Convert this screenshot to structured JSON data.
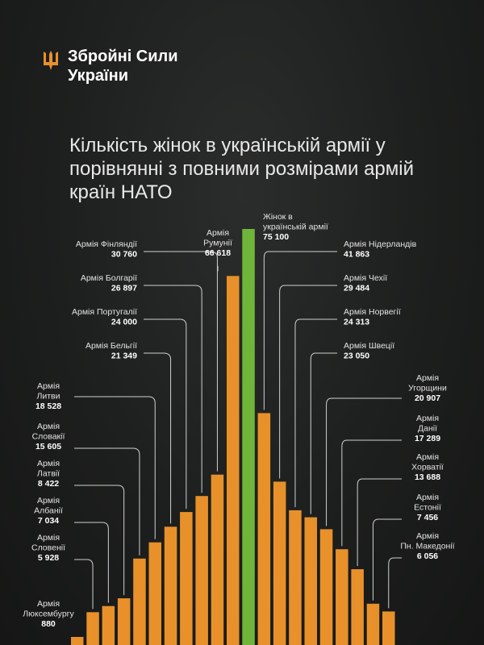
{
  "brand": {
    "name": "Збройні Сили\nУкраїни",
    "icon": "trident-icon",
    "accent": "#e8912a"
  },
  "colors": {
    "bar": "#e8912a",
    "highlight": "#6fb53a",
    "leader": "#cfcfcf",
    "background": "#1d1f1e"
  },
  "chart_data": {
    "type": "bar",
    "title": "Кількість жінок в українській армії у порівнянні з повними розмірами армій країн НАТО",
    "xlabel": "",
    "ylabel": "",
    "ylim": [
      0,
      80000
    ],
    "grid": false,
    "bars": [
      {
        "label": "Армія Люксембургу",
        "value": 880,
        "value_text": "880"
      },
      {
        "label": "Армія Словенії",
        "value": 5928,
        "value_text": "5 928"
      },
      {
        "label": "Армія Албанії",
        "value": 7034,
        "value_text": "7 034"
      },
      {
        "label": "Армія Латвії",
        "value": 8422,
        "value_text": "8 422"
      },
      {
        "label": "Армія Словакії",
        "value": 15605,
        "value_text": "15 605"
      },
      {
        "label": "Армія Литви",
        "value": 18528,
        "value_text": "18 528"
      },
      {
        "label": "Армія Бельгії",
        "value": 21349,
        "value_text": "21 349"
      },
      {
        "label": "Армія Португалії",
        "value": 24000,
        "value_text": "24 000"
      },
      {
        "label": "Армія Болгарії",
        "value": 26897,
        "value_text": "26 897"
      },
      {
        "label": "Армія Фінляндії",
        "value": 30760,
        "value_text": "30 760"
      },
      {
        "label": "Армія Румунії",
        "value": 66618,
        "value_text": "66 618"
      },
      {
        "label": "Жінок в українській армії",
        "value": 75100,
        "value_text": "75 100",
        "highlight": true
      },
      {
        "label": "Армія Нідерландів",
        "value": 41863,
        "value_text": "41 863"
      },
      {
        "label": "Армія Чехії",
        "value": 29484,
        "value_text": "29 484"
      },
      {
        "label": "Армія Норвегії",
        "value": 24313,
        "value_text": "24 313"
      },
      {
        "label": "Армія Швеції",
        "value": 23050,
        "value_text": "23 050"
      },
      {
        "label": "Армія Угорщини",
        "value": 20907,
        "value_text": "20 907"
      },
      {
        "label": "Армія Данії",
        "value": 17289,
        "value_text": "17 289"
      },
      {
        "label": "Армія Хорватії",
        "value": 13688,
        "value_text": "13 688"
      },
      {
        "label": "Армія Естонії",
        "value": 7456,
        "value_text": "7 456"
      },
      {
        "label": "Армія Пн. Македонії",
        "value": 6056,
        "value_text": "6 056"
      }
    ]
  }
}
